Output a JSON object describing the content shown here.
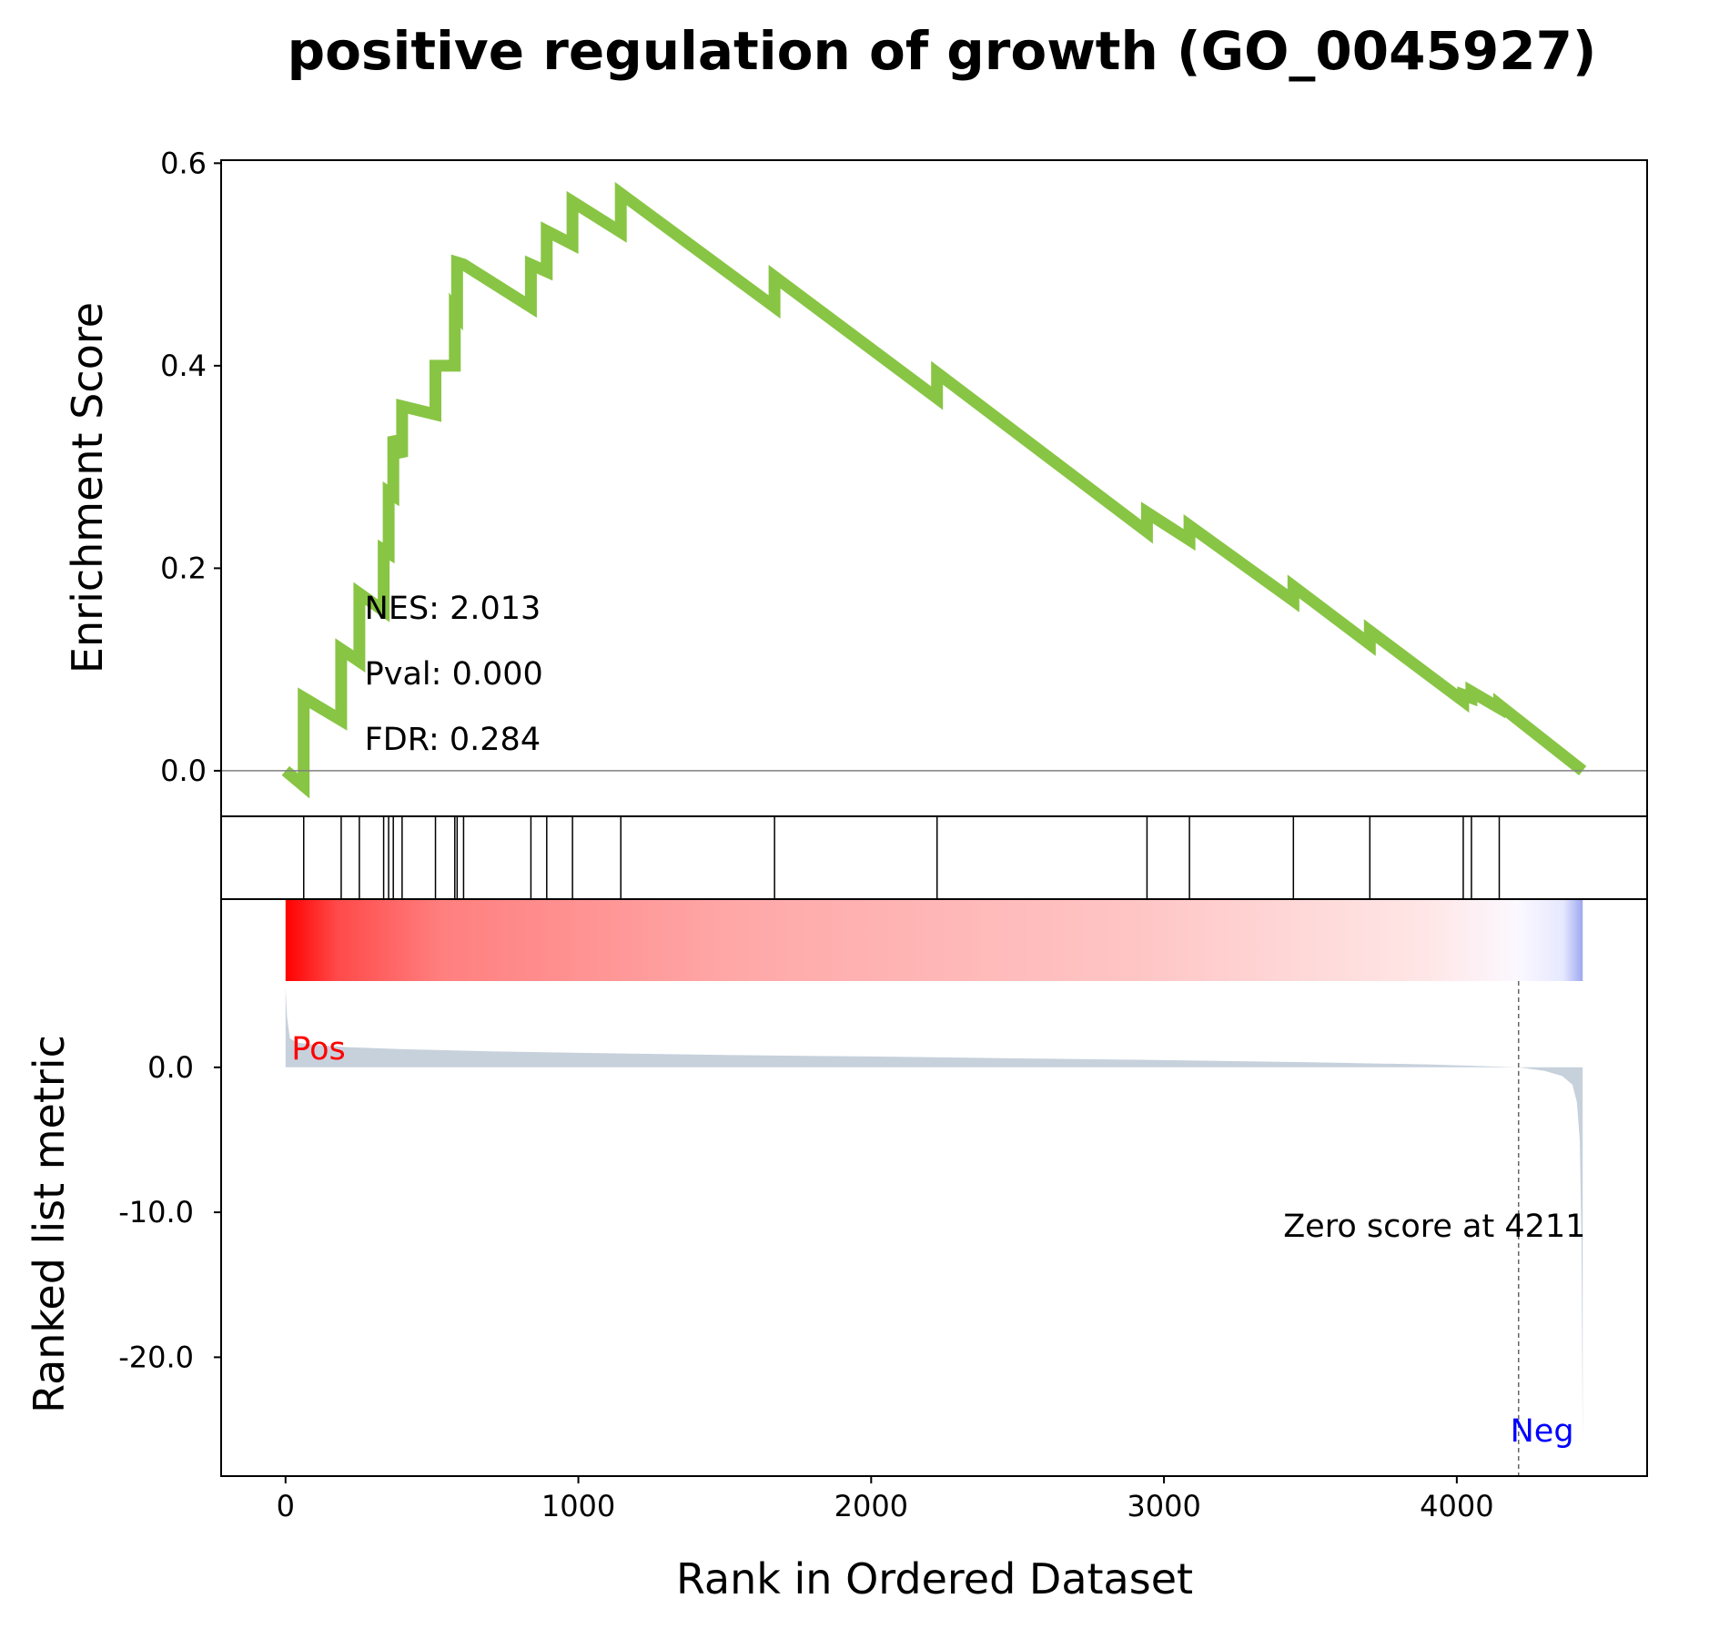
{
  "chart_data": {
    "type": "line",
    "title": "positive regulation of growth (GO_0045927)",
    "xlabel": "Rank in Ordered Dataset",
    "xlim": [
      -220,
      4650
    ],
    "xticks": [
      0,
      1000,
      2000,
      3000,
      4000
    ],
    "n_genes": 4430,
    "enrichment": {
      "ylabel": "Enrichment Score",
      "ylim": [
        -0.045,
        0.603
      ],
      "yticks": [
        0.0,
        0.2,
        0.4,
        0.6
      ],
      "ytick_labels": [
        "0.0",
        "0.2",
        "0.4",
        "0.6"
      ],
      "line_color": "#88c544",
      "x": [
        0,
        62,
        62,
        190,
        190,
        252,
        252,
        335,
        335,
        352,
        352,
        368,
        368,
        398,
        398,
        512,
        512,
        578,
        578,
        586,
        586,
        608,
        608,
        838,
        838,
        892,
        892,
        980,
        980,
        1145,
        1145,
        1670,
        1670,
        2225,
        2225,
        2942,
        2942,
        3087,
        3087,
        3442,
        3442,
        3703,
        3703,
        4022,
        4022,
        4050,
        4050,
        4145,
        4145,
        4430
      ],
      "y": [
        0.0,
        -0.015,
        0.072,
        0.05,
        0.12,
        0.108,
        0.175,
        0.158,
        0.218,
        0.215,
        0.275,
        0.272,
        0.33,
        0.31,
        0.36,
        0.352,
        0.4,
        0.4,
        0.455,
        0.452,
        0.502,
        0.5,
        0.5,
        0.458,
        0.5,
        0.493,
        0.533,
        0.52,
        0.562,
        0.532,
        0.57,
        0.458,
        0.488,
        0.368,
        0.393,
        0.236,
        0.255,
        0.228,
        0.242,
        0.168,
        0.182,
        0.125,
        0.138,
        0.069,
        0.075,
        0.072,
        0.078,
        0.062,
        0.065,
        0.0
      ],
      "annotations": [
        "NES: 2.013",
        "Pval: 0.000",
        "FDR: 0.284"
      ]
    },
    "hits": [
      62,
      190,
      252,
      335,
      352,
      368,
      398,
      512,
      578,
      586,
      608,
      838,
      892,
      980,
      1145,
      1670,
      2225,
      2942,
      3087,
      3442,
      3703,
      4022,
      4050,
      4145
    ],
    "ranked_metric": {
      "ylabel": "Ranked list metric",
      "ylim": [
        -28.2,
        5.2
      ],
      "yticks": [
        0.0,
        -10.0,
        -20.0
      ],
      "ytick_labels": [
        "0.0",
        "-10.0",
        "-20.0"
      ],
      "fill_color": "#c7d1dc",
      "x": [
        0,
        5,
        15,
        40,
        100,
        200,
        400,
        700,
        1000,
        1500,
        2000,
        2500,
        3000,
        3500,
        3900,
        4100,
        4211,
        4300,
        4360,
        4395,
        4410,
        4420,
        4426,
        4430
      ],
      "y": [
        5.5,
        3.5,
        2.0,
        1.7,
        1.55,
        1.4,
        1.25,
        1.1,
        1.0,
        0.85,
        0.75,
        0.62,
        0.5,
        0.35,
        0.2,
        0.08,
        0.0,
        -0.25,
        -0.6,
        -1.2,
        -2.4,
        -5.0,
        -12.0,
        -26.2
      ],
      "zero_cross_rank": 4211,
      "zero_label": "Zero score at 4211",
      "pos_label": "Pos",
      "neg_label": "Neg",
      "pos_color": "#ff0000",
      "neg_color": "#0000ff"
    }
  }
}
